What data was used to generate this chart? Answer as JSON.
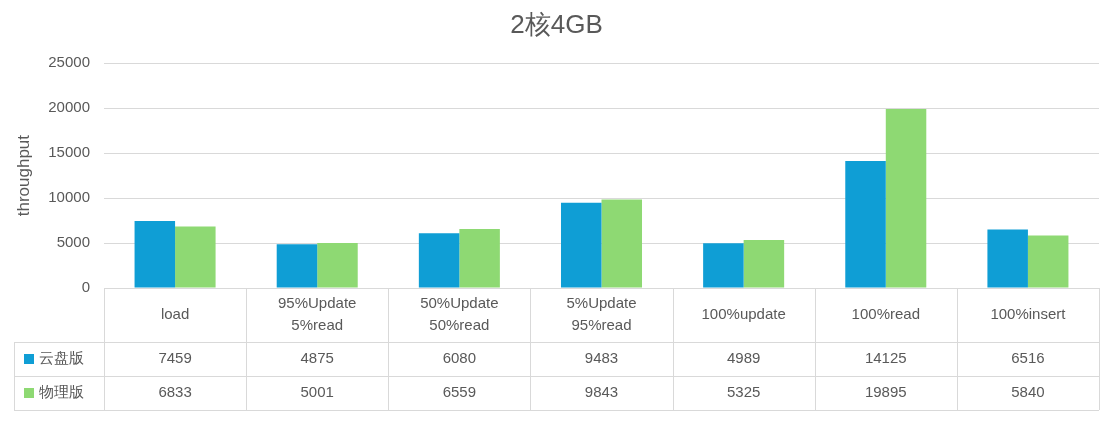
{
  "chart_data": {
    "type": "bar",
    "title": "2核4GB",
    "ylabel": "throughput",
    "categories": [
      "load",
      "95%Update 5%read",
      "50%Update 50%read",
      "5%Update 95%read",
      "100%update",
      "100%read",
      "100%insert"
    ],
    "series": [
      {
        "name": "云盘版",
        "color": "#0f9ed5",
        "values": [
          7459,
          4875,
          6080,
          9483,
          4989,
          14125,
          6516
        ]
      },
      {
        "name": "物理版",
        "color": "#8ed973",
        "values": [
          6833,
          5001,
          6559,
          9843,
          5325,
          19895,
          5840
        ]
      }
    ],
    "ylim": [
      0,
      25000
    ],
    "yticks": [
      0,
      5000,
      10000,
      15000,
      20000,
      25000
    ],
    "grid": "y",
    "legend": "bottom",
    "data_labels": true
  }
}
